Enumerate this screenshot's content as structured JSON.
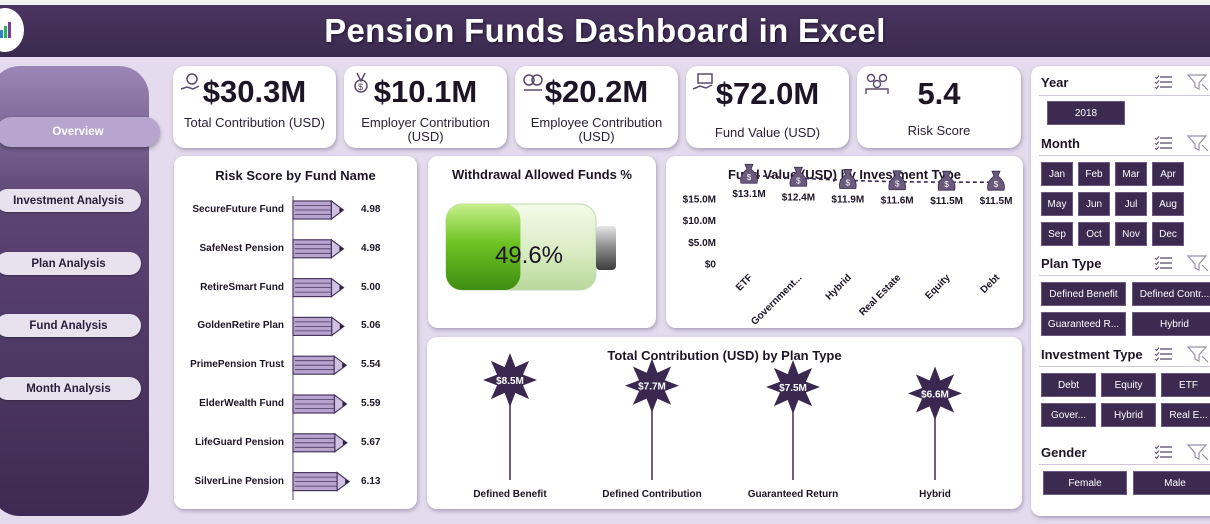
{
  "header": {
    "title": "Pension Funds Dashboard in Excel"
  },
  "nav": [
    {
      "label": "Overview",
      "active": true
    },
    {
      "label": "Investment Analysis",
      "active": false
    },
    {
      "label": "Plan Analysis",
      "active": false
    },
    {
      "label": "Fund Analysis",
      "active": false
    },
    {
      "label": "Month Analysis",
      "active": false
    }
  ],
  "kpis": [
    {
      "value": "$30.3M",
      "label": "Total Contribution (USD)",
      "icon": "coins-hand-icon"
    },
    {
      "value": "$10.1M",
      "label": "Employer Contribution (USD)",
      "icon": "medal-icon"
    },
    {
      "value": "$20.2M",
      "label": "Employee Contribution (USD)",
      "icon": "handshake-icon"
    },
    {
      "value": "$72.0M",
      "label": "Fund Value (USD)",
      "icon": "money-hand-icon"
    },
    {
      "value": "5.4",
      "label": "Risk Score",
      "icon": "people-icon"
    }
  ],
  "colors": {
    "accent": "#3c2a50",
    "banner": "#3a2a4f",
    "bar": "#b7a4cf",
    "battery": "#6fc423"
  },
  "risk_chart": {
    "title": "Risk Score by Fund Name",
    "chart_data": {
      "type": "bar",
      "categories": [
        "SecureFuture Fund",
        "SafeNest Pension",
        "RetireSmart Fund",
        "GoldenRetire Plan",
        "PrimePension Trust",
        "ElderWealth Fund",
        "LifeGuard Pension",
        "SilverLine Pension"
      ],
      "values": [
        4.98,
        4.98,
        5.0,
        5.06,
        5.54,
        5.59,
        5.67,
        6.13
      ],
      "labels": [
        "4.98",
        "4.98",
        "5.00",
        "5.06",
        "5.54",
        "5.59",
        "5.67",
        "6.13"
      ]
    }
  },
  "withdrawal": {
    "title": "Withdrawal Allowed Funds %",
    "value": "49.6%",
    "fraction": 0.496
  },
  "fund_value_chart": {
    "title": "Fund Value (USD) by Investment Type",
    "chart_data": {
      "type": "line",
      "categories": [
        "ETF",
        "Government...",
        "Hybrid",
        "Real Estate",
        "Equity",
        "Debt"
      ],
      "values": [
        13.1,
        12.4,
        11.9,
        11.6,
        11.5,
        11.5
      ],
      "labels": [
        "$13.1M",
        "$12.4M",
        "$11.9M",
        "$11.6M",
        "$11.5M",
        "$11.5M"
      ],
      "y_ticks": [
        "$15.0M",
        "$10.0M",
        "$5.0M",
        "$0"
      ],
      "ylim": [
        0,
        15
      ]
    }
  },
  "plan_chart": {
    "title": "Total Contribution (USD) by Plan Type",
    "chart_data": {
      "type": "bar",
      "categories": [
        "Defined Benefit",
        "Defined Contribution",
        "Guaranteed Return",
        "Hybrid"
      ],
      "values": [
        8.5,
        7.7,
        7.5,
        6.6
      ],
      "labels": [
        "$8.5M",
        "$7.7M",
        "$7.5M",
        "$6.6M"
      ]
    }
  },
  "slicers": {
    "year": {
      "title": "Year",
      "items": [
        "2018"
      ]
    },
    "month": {
      "title": "Month",
      "items": [
        "Jan",
        "Feb",
        "Mar",
        "Apr",
        "May",
        "Jun",
        "Jul",
        "Aug",
        "Sep",
        "Oct",
        "Nov",
        "Dec"
      ]
    },
    "plan_type": {
      "title": "Plan Type",
      "items": [
        "Defined Benefit",
        "Defined Contr...",
        "Guaranteed R...",
        "Hybrid"
      ]
    },
    "investment_type": {
      "title": "Investment Type",
      "items": [
        "Debt",
        "Equity",
        "ETF",
        "Gover...",
        "Hybrid",
        "Real E..."
      ]
    },
    "gender": {
      "title": "Gender",
      "items": [
        "Female",
        "Male"
      ]
    }
  }
}
